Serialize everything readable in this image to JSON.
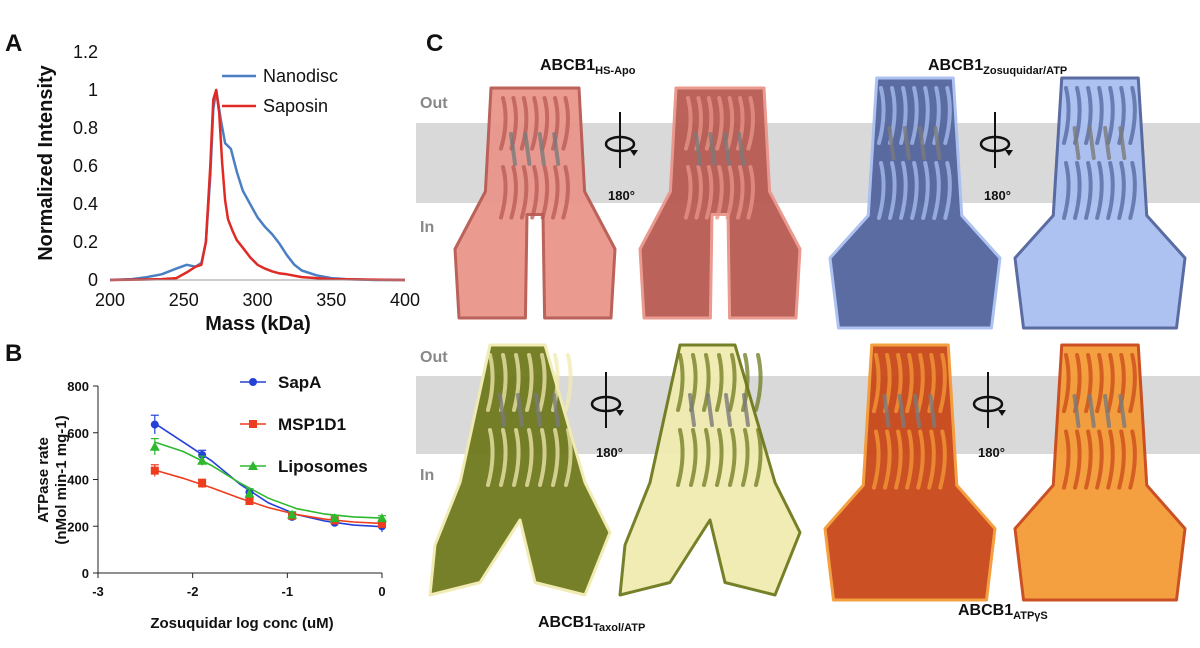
{
  "panels": {
    "a": "A",
    "b": "B",
    "c": "C"
  },
  "chart_data": [
    {
      "type": "line",
      "panel": "A",
      "xlabel": "Mass (kDa)",
      "ylabel": "Normalized Intensity",
      "xlim": [
        200,
        400
      ],
      "ylim": [
        0,
        1.2
      ],
      "xticks": [
        "200",
        "250",
        "300",
        "350",
        "400"
      ],
      "yticks": [
        "0",
        "0.2",
        "0.4",
        "0.6",
        "0.8",
        "1",
        "1.2"
      ],
      "legend_position": "top-right",
      "series": [
        {
          "name": "Nanodisc",
          "color": "#4a7fc4",
          "x": [
            200,
            215,
            225,
            235,
            245,
            252,
            258,
            262,
            265,
            268,
            270,
            272,
            275,
            278,
            282,
            286,
            290,
            295,
            300,
            305,
            310,
            315,
            320,
            325,
            330,
            340,
            350,
            360,
            380,
            400
          ],
          "y": [
            0,
            0.005,
            0.015,
            0.03,
            0.06,
            0.08,
            0.07,
            0.09,
            0.2,
            0.55,
            0.9,
            1.0,
            0.85,
            0.72,
            0.69,
            0.57,
            0.47,
            0.4,
            0.33,
            0.28,
            0.24,
            0.19,
            0.13,
            0.08,
            0.05,
            0.025,
            0.01,
            0.005,
            0,
            0
          ]
        },
        {
          "name": "Saposin",
          "color": "#e02a26",
          "x": [
            200,
            220,
            235,
            245,
            252,
            258,
            262,
            265,
            268,
            270,
            272,
            274,
            276,
            278,
            280,
            283,
            286,
            290,
            295,
            300,
            305,
            310,
            315,
            320,
            330,
            340,
            350,
            400
          ],
          "y": [
            0,
            0.002,
            0.005,
            0.01,
            0.04,
            0.07,
            0.08,
            0.2,
            0.6,
            0.95,
            1.0,
            0.88,
            0.62,
            0.42,
            0.32,
            0.26,
            0.21,
            0.17,
            0.12,
            0.08,
            0.06,
            0.045,
            0.035,
            0.03,
            0.015,
            0.01,
            0.005,
            0
          ]
        }
      ]
    },
    {
      "type": "scatter",
      "panel": "B",
      "xlabel": "Zosuquidar log conc (uM)",
      "ylabel_line1": "ATPase rate",
      "ylabel_line2": "(nMol min-1 mg-1)",
      "xlim": [
        -3,
        0
      ],
      "ylim": [
        0,
        800
      ],
      "xticks": [
        "-3",
        "-2",
        "-1",
        "0"
      ],
      "yticks": [
        "0",
        "200",
        "400",
        "600",
        "800"
      ],
      "legend_position": "right",
      "series": [
        {
          "name": "SapA",
          "color": "#2441d8",
          "marker": "circle",
          "x": [
            -2.4,
            -1.9,
            -1.4,
            -0.95,
            -0.5,
            0
          ],
          "y": [
            635,
            505,
            345,
            240,
            215,
            200
          ],
          "err": [
            40,
            20,
            15,
            12,
            12,
            25
          ],
          "fit": [
            [
              -2.4,
              640
            ],
            [
              -2.1,
              560
            ],
            [
              -1.8,
              480
            ],
            [
              -1.5,
              380
            ],
            [
              -1.2,
              300
            ],
            [
              -0.9,
              250
            ],
            [
              -0.6,
              222
            ],
            [
              -0.3,
              205
            ],
            [
              0,
              198
            ]
          ]
        },
        {
          "name": "MSP1D1",
          "color": "#ee3d1e",
          "marker": "square",
          "x": [
            -2.4,
            -1.9,
            -1.4,
            -0.95,
            -0.5,
            0
          ],
          "y": [
            438,
            383,
            308,
            245,
            225,
            210
          ],
          "err": [
            25,
            18,
            15,
            10,
            10,
            12
          ],
          "fit": [
            [
              -2.4,
              440
            ],
            [
              -2.1,
              405
            ],
            [
              -1.8,
              365
            ],
            [
              -1.5,
              320
            ],
            [
              -1.2,
              280
            ],
            [
              -0.9,
              250
            ],
            [
              -0.6,
              230
            ],
            [
              -0.3,
              218
            ],
            [
              0,
              212
            ]
          ]
        },
        {
          "name": "Liposomes",
          "color": "#2eb82e",
          "marker": "triangle",
          "x": [
            -2.4,
            -1.9,
            -1.4,
            -0.95,
            -0.5,
            0
          ],
          "y": [
            540,
            480,
            340,
            250,
            235,
            235
          ],
          "err": [
            35,
            20,
            20,
            12,
            10,
            10
          ],
          "fit": [
            [
              -2.4,
              560
            ],
            [
              -2.1,
              520
            ],
            [
              -1.8,
              460
            ],
            [
              -1.5,
              385
            ],
            [
              -1.2,
              320
            ],
            [
              -0.9,
              275
            ],
            [
              -0.6,
              252
            ],
            [
              -0.3,
              240
            ],
            [
              0,
              235
            ]
          ]
        }
      ]
    }
  ],
  "structures": {
    "membrane_out": "Out",
    "membrane_in": "In",
    "rotation": "180°",
    "s1": {
      "main": "ABCB1",
      "sub": "HS-Apo",
      "light": "#e9958a",
      "dark": "#b85a52"
    },
    "s2": {
      "main": "ABCB1",
      "sub": "Zosuquidar/ATP",
      "light": "#a9bff0",
      "dark": "#52659e"
    },
    "s3": {
      "main": "ABCB1",
      "sub": "Taxol/ATP",
      "light": "#f1eab0",
      "dark": "#6f7a1e"
    },
    "s4": {
      "main": "ABCB1",
      "sub": "ATPγS",
      "light": "#f49a36",
      "dark": "#c9481a"
    }
  }
}
